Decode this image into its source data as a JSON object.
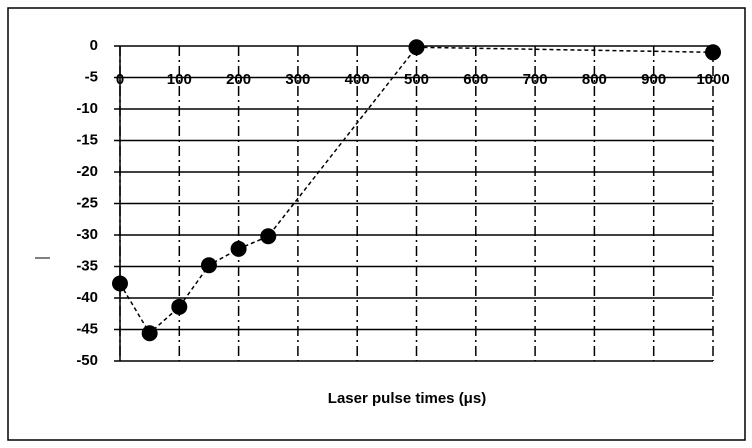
{
  "chart_data": {
    "type": "line",
    "x_label": "Laser pulse times (μs)",
    "x": [
      0,
      50,
      100,
      150,
      200,
      250,
      500,
      1000
    ],
    "series": [
      {
        "color": "#000000",
        "values": [
          -37.7,
          -45.6,
          -41.4,
          -34.8,
          -32.2,
          -30.2,
          -0.2,
          -1
        ]
      }
    ],
    "xlim": [
      0,
      1000
    ],
    "xticks": [
      0,
      100,
      200,
      300,
      400,
      500,
      600,
      700,
      800,
      900,
      1000
    ],
    "ylim": [
      -50,
      0
    ],
    "yticks": [
      0,
      -5,
      -10,
      -15,
      -20,
      -25,
      -30,
      -35,
      -40,
      -45,
      -50
    ],
    "grid": true
  }
}
